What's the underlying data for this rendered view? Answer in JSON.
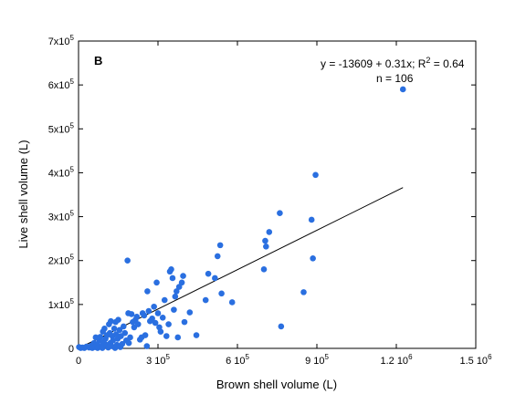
{
  "chart_data": {
    "type": "scatter",
    "panel_label": "B",
    "xlabel": "Brown shell volume (L)",
    "ylabel": "Live shell volume (L)",
    "xlim": [
      0,
      1500000
    ],
    "ylim": [
      0,
      700000
    ],
    "x_ticks": [
      {
        "value": 0,
        "base": "0",
        "exp": ""
      },
      {
        "value": 300000,
        "base": "3 10",
        "exp": "5"
      },
      {
        "value": 600000,
        "base": "6 10",
        "exp": "5"
      },
      {
        "value": 900000,
        "base": "9 10",
        "exp": "5"
      },
      {
        "value": 1200000,
        "base": "1.2 10",
        "exp": "6"
      },
      {
        "value": 1500000,
        "base": "1.5 10",
        "exp": "6"
      }
    ],
    "y_ticks": [
      {
        "value": 0,
        "base": "0",
        "exp": ""
      },
      {
        "value": 100000,
        "base": "1x10",
        "exp": "5"
      },
      {
        "value": 200000,
        "base": "2x10",
        "exp": "5"
      },
      {
        "value": 300000,
        "base": "3x10",
        "exp": "5"
      },
      {
        "value": 400000,
        "base": "4x10",
        "exp": "5"
      },
      {
        "value": 500000,
        "base": "5x10",
        "exp": "5"
      },
      {
        "value": 600000,
        "base": "6x10",
        "exp": "5"
      },
      {
        "value": 700000,
        "base": "7x10",
        "exp": "5"
      }
    ],
    "equation": {
      "prefix": "y = -13609 + 0.31x; R",
      "sup": "2",
      "suffix": " = 0.64"
    },
    "n_label": "n = 106",
    "regression": {
      "intercept": -13609,
      "slope": 0.31,
      "x_range": [
        0,
        1225000
      ]
    },
    "marker_color": "#2a6fe0",
    "points": [
      [
        2000,
        3000
      ],
      [
        8000,
        1000
      ],
      [
        15000,
        2000
      ],
      [
        22000,
        1000
      ],
      [
        30000,
        4000
      ],
      [
        40000,
        2000
      ],
      [
        48000,
        6000
      ],
      [
        52000,
        1000
      ],
      [
        58000,
        12000
      ],
      [
        62000,
        3000
      ],
      [
        65000,
        25000
      ],
      [
        70000,
        8000
      ],
      [
        72000,
        1000
      ],
      [
        78000,
        18000
      ],
      [
        82000,
        26000
      ],
      [
        88000,
        6000
      ],
      [
        90000,
        1000
      ],
      [
        92000,
        38000
      ],
      [
        95000,
        15000
      ],
      [
        98000,
        45000
      ],
      [
        102000,
        22000
      ],
      [
        105000,
        8000
      ],
      [
        108000,
        30000
      ],
      [
        112000,
        2000
      ],
      [
        115000,
        55000
      ],
      [
        118000,
        35000
      ],
      [
        120000,
        12000
      ],
      [
        122000,
        62000
      ],
      [
        125000,
        5000
      ],
      [
        128000,
        28000
      ],
      [
        130000,
        18000
      ],
      [
        135000,
        45000
      ],
      [
        138000,
        1000
      ],
      [
        140000,
        60000
      ],
      [
        142000,
        32000
      ],
      [
        145000,
        8000
      ],
      [
        148000,
        22000
      ],
      [
        150000,
        65000
      ],
      [
        155000,
        42000
      ],
      [
        158000,
        3000
      ],
      [
        160000,
        28000
      ],
      [
        165000,
        10000
      ],
      [
        170000,
        50000
      ],
      [
        175000,
        35000
      ],
      [
        180000,
        18000
      ],
      [
        185000,
        200000
      ],
      [
        188000,
        80000
      ],
      [
        190000,
        12000
      ],
      [
        195000,
        25000
      ],
      [
        200000,
        78000
      ],
      [
        205000,
        60000
      ],
      [
        210000,
        48000
      ],
      [
        215000,
        65000
      ],
      [
        220000,
        72000
      ],
      [
        225000,
        55000
      ],
      [
        232000,
        20000
      ],
      [
        238000,
        25000
      ],
      [
        242000,
        80000
      ],
      [
        248000,
        75000
      ],
      [
        252000,
        30000
      ],
      [
        258000,
        5000
      ],
      [
        260000,
        130000
      ],
      [
        265000,
        85000
      ],
      [
        270000,
        62000
      ],
      [
        278000,
        68000
      ],
      [
        285000,
        95000
      ],
      [
        290000,
        58000
      ],
      [
        295000,
        150000
      ],
      [
        300000,
        80000
      ],
      [
        305000,
        48000
      ],
      [
        310000,
        38000
      ],
      [
        318000,
        70000
      ],
      [
        325000,
        110000
      ],
      [
        332000,
        28000
      ],
      [
        340000,
        55000
      ],
      [
        345000,
        175000
      ],
      [
        350000,
        180000
      ],
      [
        355000,
        160000
      ],
      [
        360000,
        88000
      ],
      [
        365000,
        118000
      ],
      [
        370000,
        130000
      ],
      [
        375000,
        25000
      ],
      [
        380000,
        140000
      ],
      [
        390000,
        150000
      ],
      [
        395000,
        165000
      ],
      [
        400000,
        60000
      ],
      [
        420000,
        82000
      ],
      [
        445000,
        30000
      ],
      [
        480000,
        110000
      ],
      [
        490000,
        170000
      ],
      [
        515000,
        160000
      ],
      [
        525000,
        210000
      ],
      [
        535000,
        235000
      ],
      [
        540000,
        125000
      ],
      [
        580000,
        105000
      ],
      [
        700000,
        180000
      ],
      [
        705000,
        245000
      ],
      [
        708000,
        232000
      ],
      [
        720000,
        265000
      ],
      [
        760000,
        308000
      ],
      [
        765000,
        50000
      ],
      [
        850000,
        128000
      ],
      [
        880000,
        293000
      ],
      [
        885000,
        205000
      ],
      [
        895000,
        395000
      ],
      [
        1225000,
        590000
      ]
    ]
  }
}
